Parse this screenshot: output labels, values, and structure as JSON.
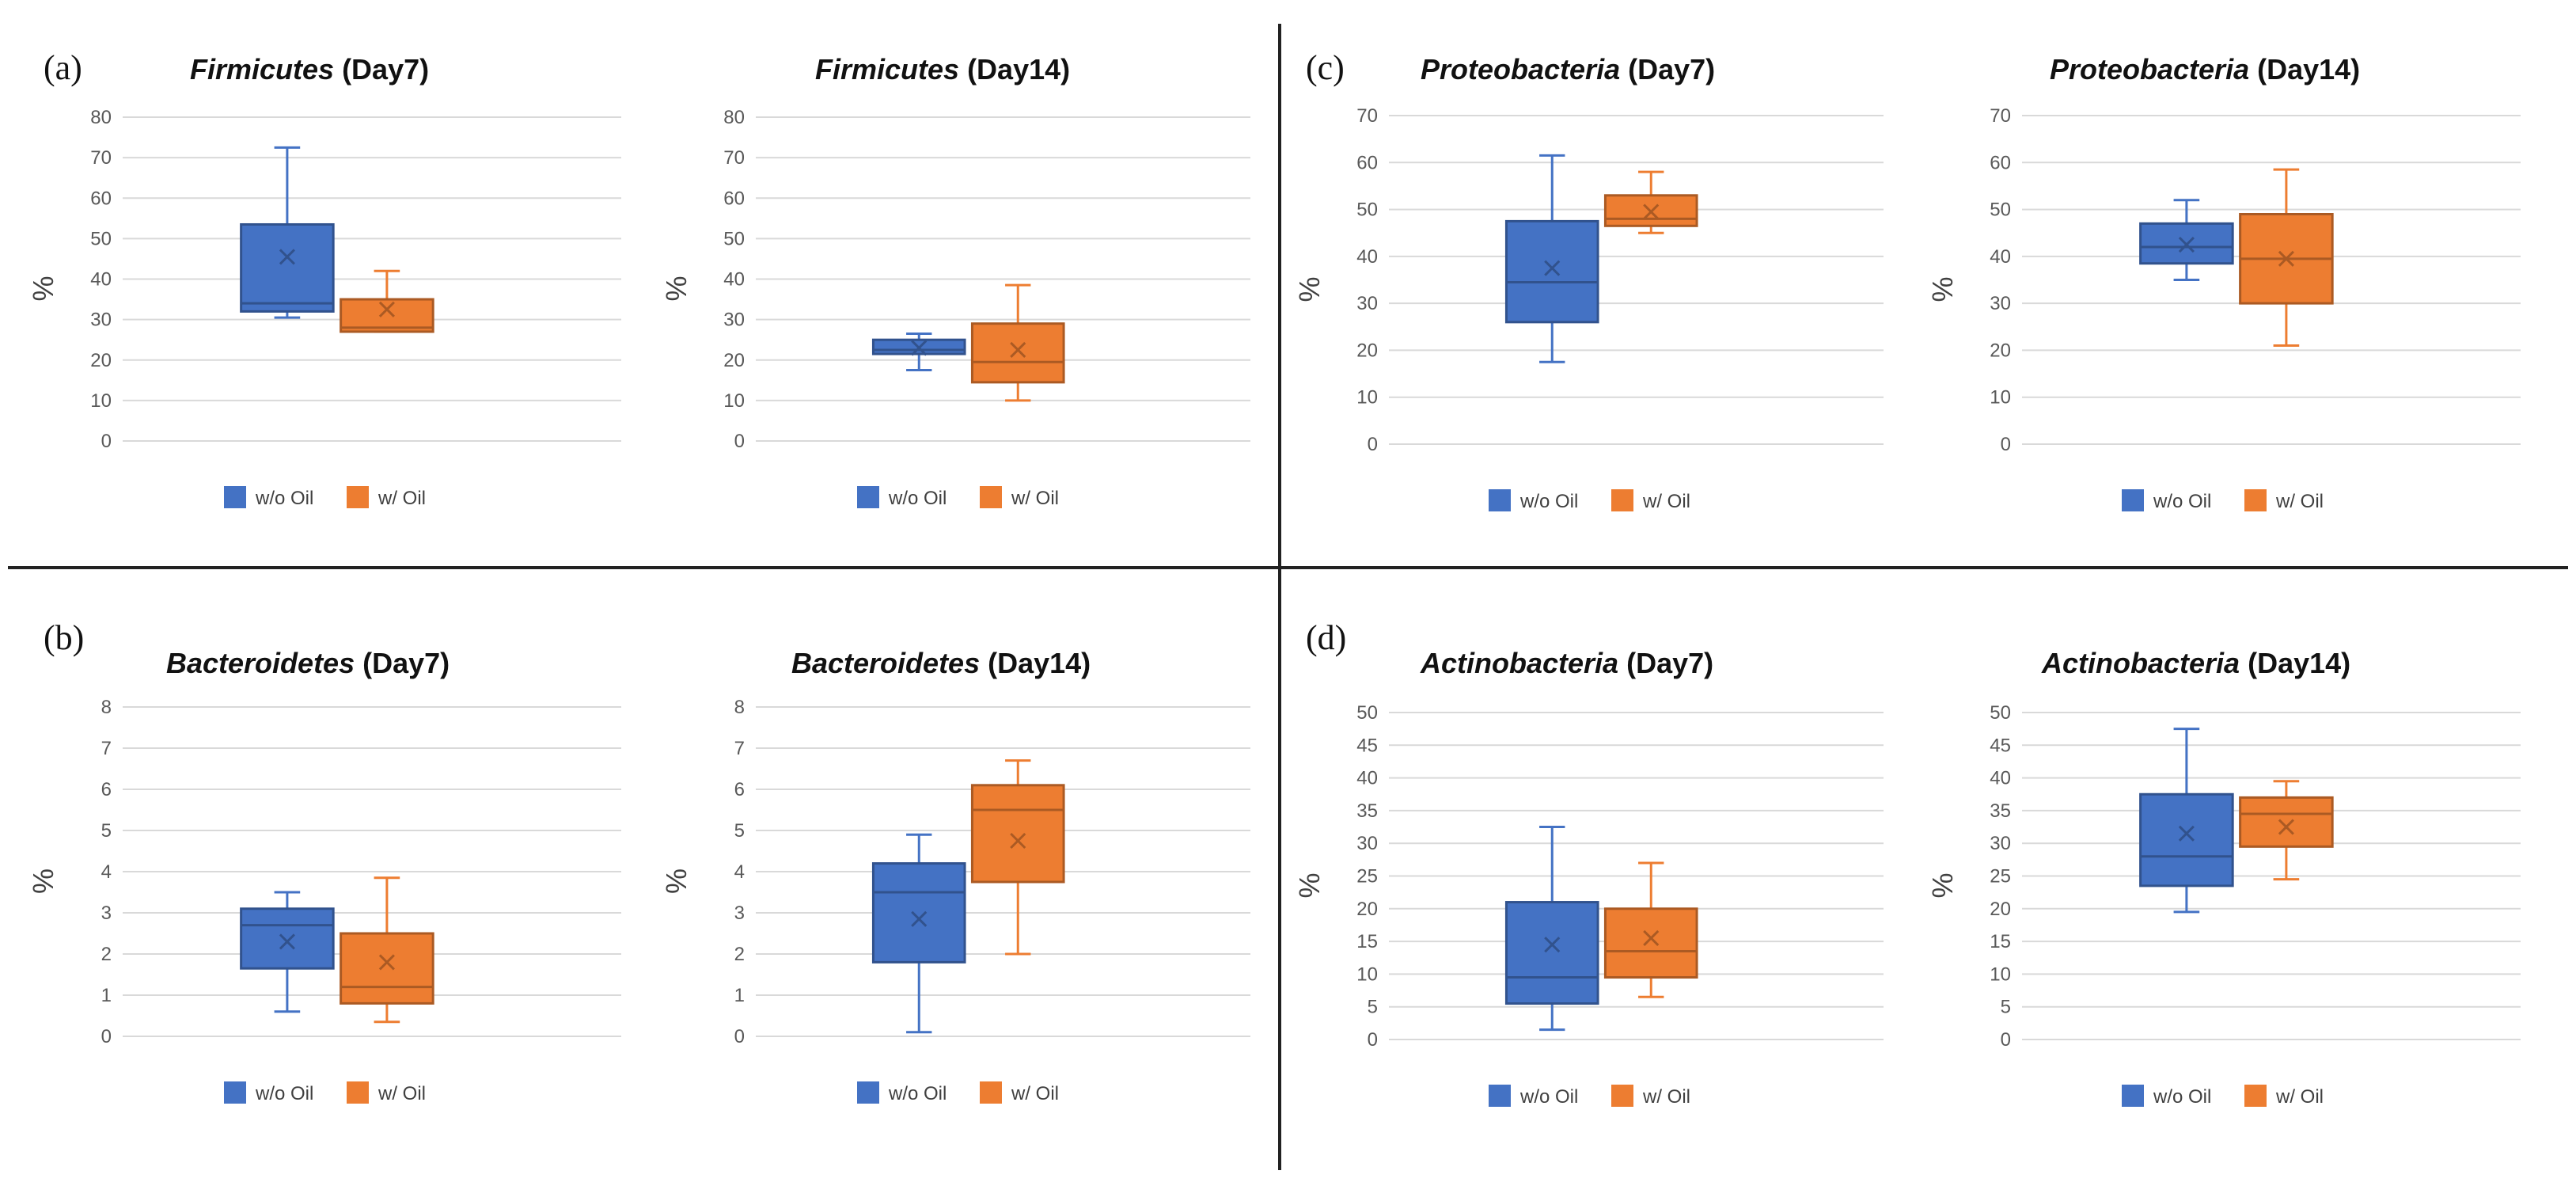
{
  "panel_labels": [
    "(a)",
    "(b)",
    "(c)",
    "(d)"
  ],
  "legend": {
    "items": [
      {
        "label": "w/o Oil",
        "color": "#4472C4"
      },
      {
        "label": "w/ Oil",
        "color": "#ED7D31"
      }
    ]
  },
  "chart_data": [
    {
      "type": "box",
      "title_italic": "Firmicutes",
      "title_rest": " (Day7)",
      "ylabel": "%",
      "ylim": [
        0,
        80
      ],
      "yticks": [
        "0",
        "10",
        "20",
        "30",
        "40",
        "50",
        "60",
        "70",
        "80"
      ],
      "series": [
        {
          "name": "w/o Oil",
          "min": 30.5,
          "q1": 32,
          "median": 34,
          "q3": 53.5,
          "max": 72.5,
          "mean": 45.5
        },
        {
          "name": "w/ Oil",
          "min": 27,
          "q1": 27,
          "median": 28,
          "q3": 35,
          "max": 42,
          "mean": 32.5
        }
      ]
    },
    {
      "type": "box",
      "title_italic": "Firmicutes",
      "title_rest": " (Day14)",
      "ylabel": "%",
      "ylim": [
        0,
        80
      ],
      "yticks": [
        "0",
        "10",
        "20",
        "30",
        "40",
        "50",
        "60",
        "70",
        "80"
      ],
      "series": [
        {
          "name": "w/o Oil",
          "min": 17.5,
          "q1": 21.5,
          "median": 22.5,
          "q3": 25,
          "max": 26.5,
          "mean": 23
        },
        {
          "name": "w/ Oil",
          "min": 10,
          "q1": 14.5,
          "median": 19.5,
          "q3": 29,
          "max": 38.5,
          "mean": 22.5
        }
      ]
    },
    {
      "type": "box",
      "title_italic": "Proteobacteria",
      "title_rest": " (Day7)",
      "ylabel": "%",
      "ylim": [
        0,
        70
      ],
      "yticks": [
        "0",
        "10",
        "20",
        "30",
        "40",
        "50",
        "60",
        "70"
      ],
      "series": [
        {
          "name": "w/o Oil",
          "min": 17.5,
          "q1": 26,
          "median": 34.5,
          "q3": 47.5,
          "max": 61.5,
          "mean": 37.5
        },
        {
          "name": "w/ Oil",
          "min": 45,
          "q1": 46.5,
          "median": 48,
          "q3": 53,
          "max": 58,
          "mean": 49.5
        }
      ]
    },
    {
      "type": "box",
      "title_italic": "Proteobacteria",
      "title_rest": " (Day14)",
      "ylabel": "%",
      "ylim": [
        0,
        70
      ],
      "yticks": [
        "0",
        "10",
        "20",
        "30",
        "40",
        "50",
        "60",
        "70"
      ],
      "series": [
        {
          "name": "w/o Oil",
          "min": 35,
          "q1": 38.5,
          "median": 42,
          "q3": 47,
          "max": 52,
          "mean": 42.5
        },
        {
          "name": "w/ Oil",
          "min": 21,
          "q1": 30,
          "median": 39.5,
          "q3": 49,
          "max": 58.5,
          "mean": 39.5
        }
      ]
    },
    {
      "type": "box",
      "title_italic": "Bacteroidetes",
      "title_rest": " (Day7)",
      "ylabel": "%",
      "ylim": [
        0,
        8
      ],
      "yticks": [
        "0",
        "1",
        "2",
        "3",
        "4",
        "5",
        "6",
        "7",
        "8"
      ],
      "series": [
        {
          "name": "w/o Oil",
          "min": 0.6,
          "q1": 1.65,
          "median": 2.7,
          "q3": 3.1,
          "max": 3.5,
          "mean": 2.3
        },
        {
          "name": "w/ Oil",
          "min": 0.35,
          "q1": 0.8,
          "median": 1.2,
          "q3": 2.5,
          "max": 3.85,
          "mean": 1.8
        }
      ]
    },
    {
      "type": "box",
      "title_italic": "Bacteroidetes",
      "title_rest": " (Day14)",
      "ylabel": "%",
      "ylim": [
        0,
        8
      ],
      "yticks": [
        "0",
        "1",
        "2",
        "3",
        "4",
        "5",
        "6",
        "7",
        "8"
      ],
      "series": [
        {
          "name": "w/o Oil",
          "min": 0.1,
          "q1": 1.8,
          "median": 3.5,
          "q3": 4.2,
          "max": 4.9,
          "mean": 2.85
        },
        {
          "name": "w/ Oil",
          "min": 2.0,
          "q1": 3.75,
          "median": 5.5,
          "q3": 6.1,
          "max": 6.7,
          "mean": 4.75
        }
      ]
    },
    {
      "type": "box",
      "title_italic": "Actinobacteria",
      "title_rest": "  (Day7)",
      "ylabel": "%",
      "ylim": [
        0,
        50
      ],
      "yticks": [
        "0",
        "5",
        "10",
        "15",
        "20",
        "25",
        "30",
        "35",
        "40",
        "45",
        "50"
      ],
      "series": [
        {
          "name": "w/o Oil",
          "min": 1.5,
          "q1": 5.5,
          "median": 9.5,
          "q3": 21,
          "max": 32.5,
          "mean": 14.5
        },
        {
          "name": "w/ Oil",
          "min": 6.5,
          "q1": 9.5,
          "median": 13.5,
          "q3": 20,
          "max": 27,
          "mean": 15.5
        }
      ]
    },
    {
      "type": "box",
      "title_italic": "Actinobacteria",
      "title_rest": "  (Day14)",
      "ylabel": "%",
      "ylim": [
        0,
        50
      ],
      "yticks": [
        "0",
        "5",
        "10",
        "15",
        "20",
        "25",
        "30",
        "35",
        "40",
        "45",
        "50"
      ],
      "series": [
        {
          "name": "w/o Oil",
          "min": 19.5,
          "q1": 23.5,
          "median": 28,
          "q3": 37.5,
          "max": 47.5,
          "mean": 31.5
        },
        {
          "name": "w/ Oil",
          "min": 24.5,
          "q1": 29.5,
          "median": 34.5,
          "q3": 37,
          "max": 39.5,
          "mean": 32.5
        }
      ]
    }
  ]
}
